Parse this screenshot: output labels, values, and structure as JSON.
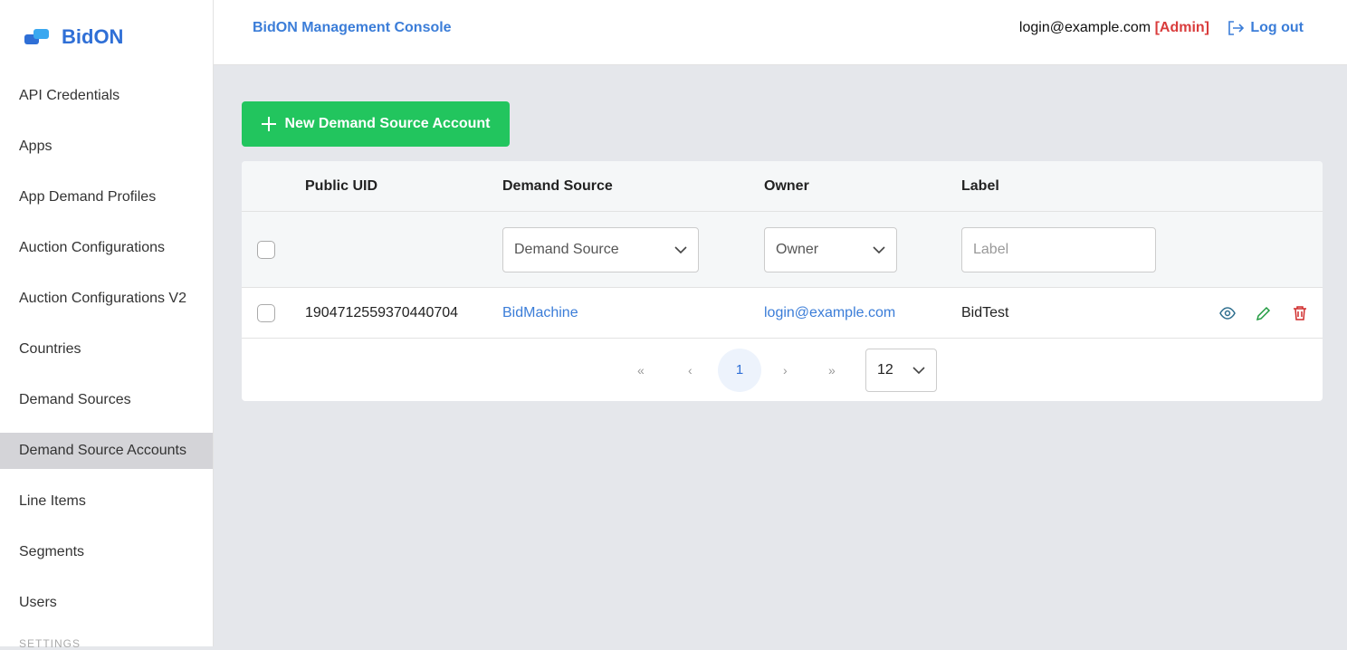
{
  "brand": "BidON",
  "nav": {
    "items": [
      "API Credentials",
      "Apps",
      "App Demand Profiles",
      "Auction Configurations",
      "Auction Configurations V2",
      "Countries",
      "Demand Sources",
      "Demand Source Accounts",
      "Line Items",
      "Segments",
      "Users"
    ],
    "active": 7,
    "section": "SETTINGS"
  },
  "header": {
    "title": "BidON Management Console",
    "user": "login@example.com",
    "role": "[Admin]",
    "logout": "Log out"
  },
  "toolbar": {
    "new_button": "New Demand Source Account"
  },
  "table": {
    "columns": [
      "Public UID",
      "Demand Source",
      "Owner",
      "Label"
    ],
    "filters": {
      "demand_source": "Demand Source",
      "owner": "Owner",
      "label": "Label"
    },
    "rows": [
      [
        "1904712559370440704",
        "BidMachine",
        "login@example.com",
        "BidTest"
      ]
    ]
  },
  "pagination": {
    "current": 1,
    "page_size": 12
  }
}
